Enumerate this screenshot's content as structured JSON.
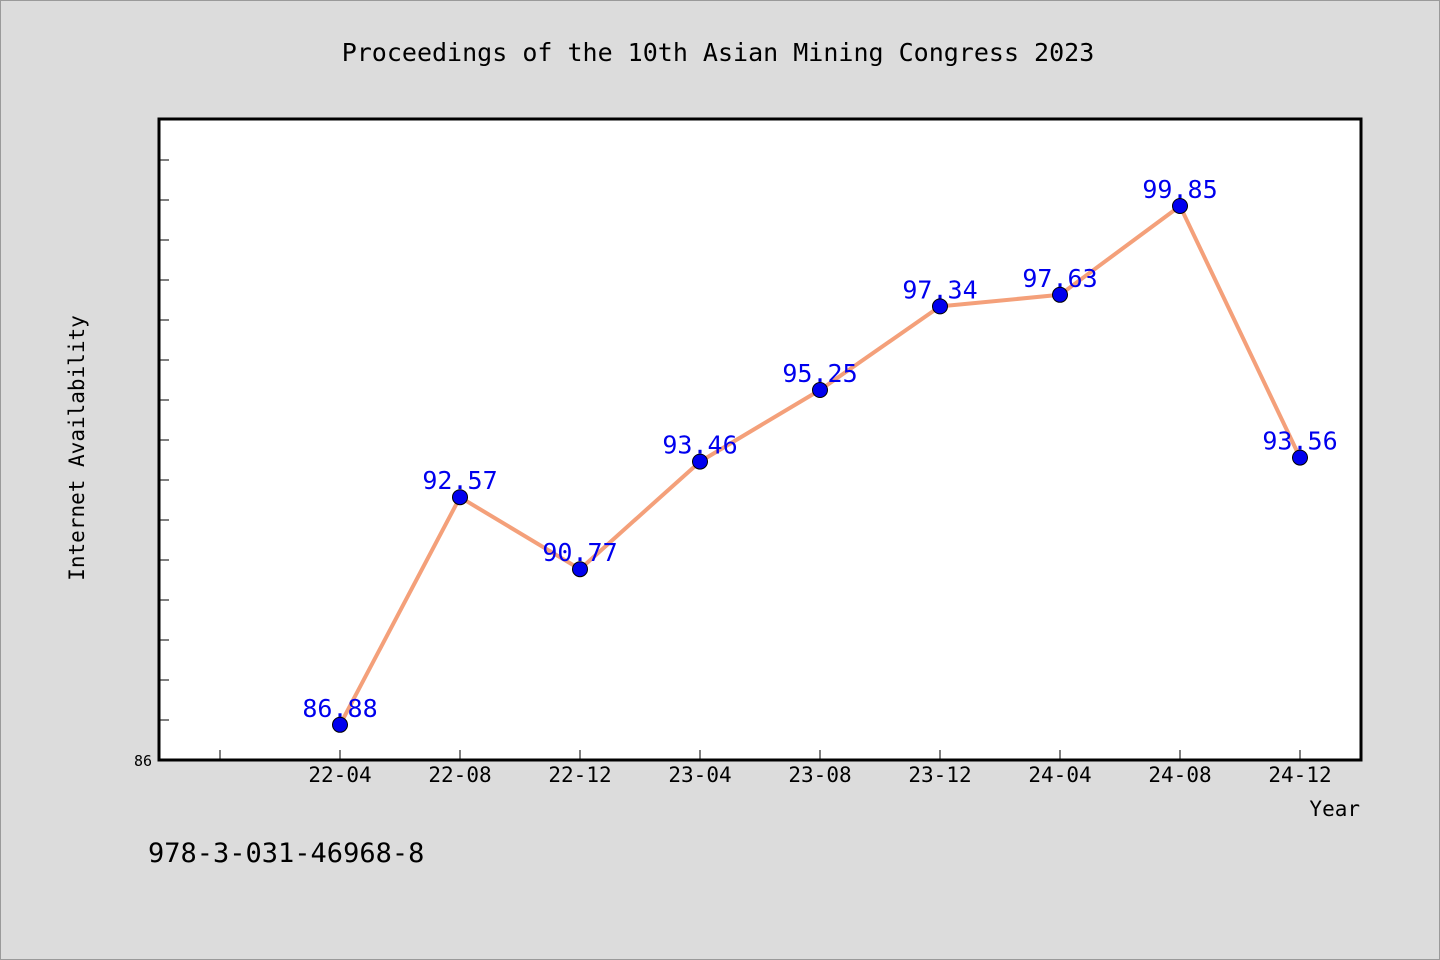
{
  "chart_data": {
    "type": "line",
    "title": "Proceedings of the 10th Asian Mining Congress 2023",
    "xlabel": "Year",
    "ylabel": "Internet Availability",
    "categories": [
      "22-04",
      "22-08",
      "22-12",
      "23-04",
      "23-08",
      "23-12",
      "24-04",
      "24-08",
      "24-12"
    ],
    "series": [
      {
        "values": [
          86.88,
          92.57,
          90.77,
          93.46,
          95.25,
          97.34,
          97.63,
          99.85,
          93.56
        ],
        "line_color": "#f4a07a",
        "marker_color": "#0000ee"
      }
    ],
    "data_labels": [
      "86.88",
      "92.57",
      "90.77",
      "93.46",
      "95.25",
      "97.34",
      "97.63",
      "99.85",
      "93.56"
    ],
    "ylim": [
      86,
      102
    ],
    "ytick_labels": [
      "86"
    ],
    "grid": false,
    "legend": "none"
  },
  "footer_text": "978-3-031-46968-8"
}
